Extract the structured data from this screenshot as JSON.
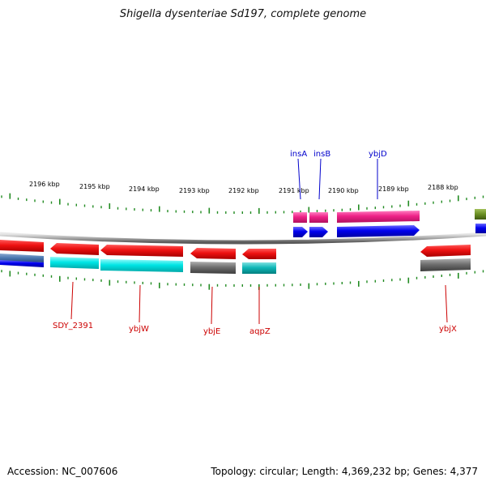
{
  "title": "Shigella dysenteriae Sd197, complete genome",
  "footer": {
    "accession": "Accession: NC_007606",
    "summary": "Topology: circular; Length: 4,369,232 bp; Genes: 4,377"
  },
  "colors": {
    "backbone": "#a0a0a0",
    "tick": "#228b22",
    "red_gene": "#ee1111",
    "cyan_gene": "#00e5e5",
    "grey_gene": "#707070",
    "teal_gene": "#11b8b8",
    "pink_gene": "#ee2288",
    "blue_gene": "#0000ee",
    "olive_gene": "#6a8e23",
    "label_top": "#0000cc",
    "label_bottom": "#cc0000"
  },
  "kbp_labels": [
    "2196 kbp",
    "2195 kbp",
    "2194 kbp",
    "2193 kbp",
    "2192 kbp",
    "2191 kbp",
    "2190 kbp",
    "2189 kbp",
    "2188 kbp"
  ],
  "top_labels": [
    "insA",
    "insB",
    "ybjD"
  ],
  "bottom_labels": [
    "SDY_2391",
    "ybjW",
    "ybjE",
    "aqpZ",
    "ybjX"
  ]
}
